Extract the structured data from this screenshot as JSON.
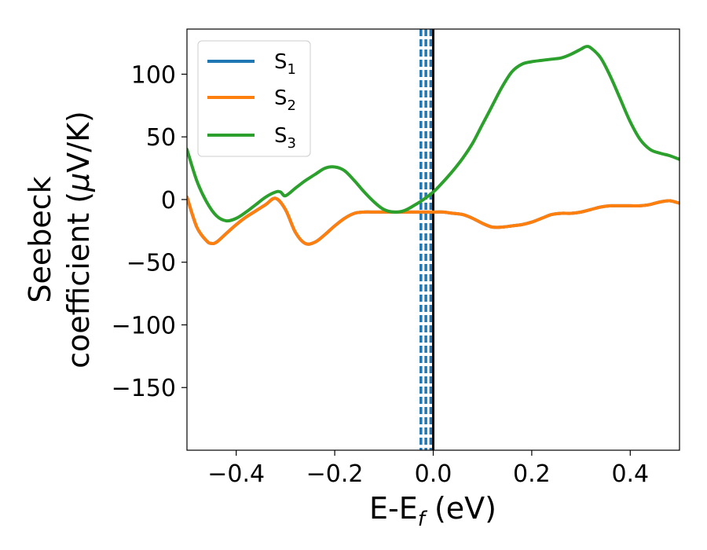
{
  "chart_data": {
    "type": "line",
    "xlabel": "E-E",
    "xlabel_sub": "f",
    "xlabel_unit": " (eV)",
    "ylabel_line1": "Seebeck",
    "ylabel_line2": "coefficient  (",
    "ylabel_mu": "μ",
    "ylabel_unit": "V/K)",
    "xlim": [
      -0.5,
      0.5
    ],
    "ylim": [
      -200,
      136
    ],
    "xticks": [
      -0.4,
      -0.2,
      0.0,
      0.2,
      0.4
    ],
    "xtick_labels": [
      "−0.4",
      "−0.2",
      "0.0",
      "0.2",
      "0.4"
    ],
    "yticks": [
      100,
      50,
      0,
      -50,
      -100,
      -150
    ],
    "ytick_labels": [
      "100",
      "50",
      "0",
      "−50",
      "−100",
      "−150"
    ],
    "grid": false,
    "legend_position": "top-left",
    "vlines": [
      {
        "x": -0.025,
        "style": "dashed",
        "color": "#1f77b4"
      },
      {
        "x": -0.015,
        "style": "dashed",
        "color": "#1f77b4"
      },
      {
        "x": -0.005,
        "style": "dashed",
        "color": "#1f77b4"
      },
      {
        "x": 0.0,
        "style": "solid",
        "color": "#000000"
      }
    ],
    "series": [
      {
        "name": "S",
        "sub": "1",
        "color": "#1f77b4",
        "x": [
          -0.5,
          -0.48,
          -0.46,
          -0.45,
          -0.44,
          -0.42,
          -0.4,
          -0.38,
          -0.36,
          -0.34,
          -0.32,
          -0.3,
          -0.28,
          -0.26,
          -0.24,
          -0.22,
          -0.2,
          -0.18,
          -0.16,
          -0.14,
          -0.12,
          -0.1,
          -0.08,
          -0.06,
          -0.04,
          -0.02,
          0.0,
          0.02,
          0.04,
          0.06,
          0.08,
          0.1,
          0.12,
          0.14,
          0.16,
          0.18,
          0.2,
          0.22,
          0.24,
          0.26,
          0.28,
          0.3,
          0.32,
          0.34,
          0.36,
          0.38,
          0.4,
          0.42,
          0.44,
          0.46,
          0.48,
          0.5
        ],
        "y": [
          2,
          -22,
          -33,
          -35,
          -34,
          -27,
          -20,
          -14,
          -9,
          -4,
          1,
          -8,
          -26,
          -35,
          -34,
          -28,
          -21,
          -15,
          -11,
          -10,
          -10,
          -10,
          -10,
          -10,
          -10,
          -10,
          -10,
          -10,
          -11,
          -12,
          -15,
          -19,
          -22,
          -22,
          -21,
          -20,
          -18,
          -15,
          -12,
          -11,
          -11,
          -10,
          -8,
          -6,
          -5,
          -5,
          -5,
          -5,
          -4,
          -2,
          -1,
          -3
        ]
      },
      {
        "name": "S",
        "sub": "2",
        "color": "#ff7f0e",
        "x": [
          -0.5,
          -0.48,
          -0.46,
          -0.45,
          -0.44,
          -0.42,
          -0.4,
          -0.38,
          -0.36,
          -0.34,
          -0.32,
          -0.3,
          -0.28,
          -0.26,
          -0.24,
          -0.22,
          -0.2,
          -0.18,
          -0.16,
          -0.14,
          -0.12,
          -0.1,
          -0.08,
          -0.06,
          -0.04,
          -0.02,
          0.0,
          0.02,
          0.04,
          0.06,
          0.08,
          0.1,
          0.12,
          0.14,
          0.16,
          0.18,
          0.2,
          0.22,
          0.24,
          0.26,
          0.28,
          0.3,
          0.32,
          0.34,
          0.36,
          0.38,
          0.4,
          0.42,
          0.44,
          0.46,
          0.48,
          0.5
        ],
        "y": [
          2,
          -22,
          -33,
          -35,
          -34,
          -27,
          -20,
          -14,
          -9,
          -4,
          1,
          -8,
          -26,
          -35,
          -34,
          -28,
          -21,
          -15,
          -11,
          -10,
          -10,
          -10,
          -10,
          -10,
          -10,
          -10,
          -10,
          -10,
          -11,
          -12,
          -15,
          -19,
          -22,
          -22,
          -21,
          -20,
          -18,
          -15,
          -12,
          -11,
          -11,
          -10,
          -8,
          -6,
          -5,
          -5,
          -5,
          -5,
          -4,
          -2,
          -1,
          -3
        ]
      },
      {
        "name": "S",
        "sub": "3",
        "color": "#2ca02c",
        "x": [
          -0.5,
          -0.48,
          -0.46,
          -0.44,
          -0.42,
          -0.4,
          -0.38,
          -0.36,
          -0.34,
          -0.32,
          -0.31,
          -0.3,
          -0.28,
          -0.26,
          -0.24,
          -0.22,
          -0.2,
          -0.18,
          -0.16,
          -0.14,
          -0.12,
          -0.1,
          -0.08,
          -0.06,
          -0.04,
          -0.02,
          0.0,
          0.02,
          0.04,
          0.06,
          0.08,
          0.1,
          0.12,
          0.14,
          0.16,
          0.18,
          0.2,
          0.22,
          0.24,
          0.26,
          0.28,
          0.3,
          0.31,
          0.32,
          0.34,
          0.36,
          0.38,
          0.4,
          0.42,
          0.44,
          0.46,
          0.48,
          0.5
        ],
        "y": [
          40,
          15,
          -2,
          -13,
          -17,
          -15,
          -10,
          -4,
          2,
          6,
          6,
          3,
          9,
          15,
          20,
          25,
          26,
          23,
          15,
          6,
          -2,
          -8,
          -10,
          -9,
          -5,
          0,
          6,
          14,
          23,
          33,
          45,
          60,
          75,
          90,
          102,
          108,
          110,
          111,
          112,
          113,
          116,
          120,
          122,
          121,
          113,
          98,
          80,
          62,
          48,
          40,
          37,
          35,
          32
        ]
      }
    ]
  }
}
